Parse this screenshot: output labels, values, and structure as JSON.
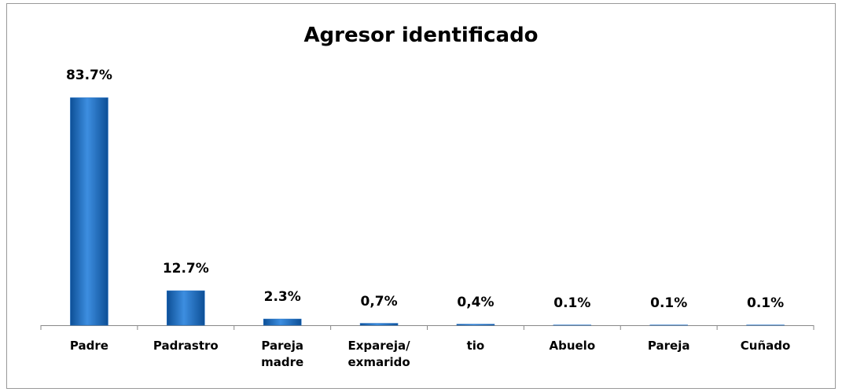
{
  "chart_data": {
    "type": "bar",
    "title": "Agresor identificado",
    "categories": [
      "Padre",
      "Padrastro",
      "Pareja\nmadre",
      "Expareja/\nexmarido",
      "tio",
      "Abuelo",
      "Pareja",
      "Cuñado"
    ],
    "values": [
      83.7,
      12.7,
      2.3,
      0.7,
      0.4,
      0.1,
      0.1,
      0.1
    ],
    "value_labels": [
      "83.7%",
      "12.7%",
      "2.3%",
      "0,7%",
      "0,4%",
      "0.1%",
      "0.1%",
      "0.1%"
    ],
    "color": "#1a6cc4",
    "ylim": [
      0,
      100
    ]
  }
}
